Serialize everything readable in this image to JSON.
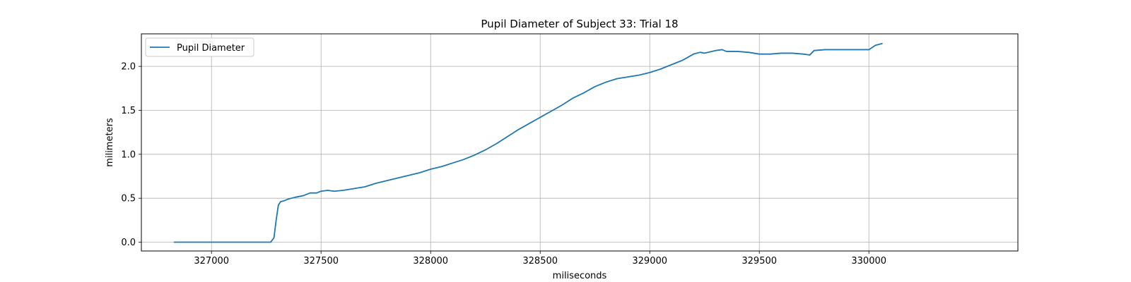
{
  "chart_data": {
    "type": "line",
    "title": "Pupil Diameter of Subject 33: Trial 18",
    "xlabel": "miliseconds",
    "ylabel": "milimeters",
    "xlim": [
      326680,
      330680
    ],
    "ylim": [
      -0.1,
      2.37
    ],
    "xticks": [
      327000,
      327500,
      328000,
      328500,
      329000,
      329500,
      330000
    ],
    "yticks": [
      0.0,
      0.5,
      1.0,
      1.5,
      2.0
    ],
    "xtick_labels": [
      "327000",
      "327500",
      "328000",
      "328500",
      "329000",
      "329500",
      "330000"
    ],
    "ytick_labels": [
      "0.0",
      "0.5",
      "1.0",
      "1.5",
      "2.0"
    ],
    "grid": true,
    "legend_position": "top-left",
    "series": [
      {
        "name": "Pupil Diameter",
        "color": "#1f77b4",
        "x": [
          326830,
          326900,
          327000,
          327100,
          327200,
          327270,
          327285,
          327295,
          327305,
          327315,
          327330,
          327350,
          327380,
          327400,
          327420,
          327450,
          327480,
          327500,
          327530,
          327560,
          327600,
          327650,
          327700,
          327750,
          327800,
          327850,
          327900,
          327950,
          328000,
          328050,
          328100,
          328150,
          328200,
          328250,
          328300,
          328350,
          328400,
          328450,
          328500,
          328550,
          328600,
          328650,
          328700,
          328750,
          328800,
          328850,
          328900,
          328950,
          329000,
          329050,
          329100,
          329150,
          329200,
          329230,
          329250,
          329300,
          329330,
          329350,
          329400,
          329450,
          329500,
          329550,
          329600,
          329650,
          329700,
          329730,
          329750,
          329800,
          329850,
          329900,
          329950,
          330000,
          330030,
          330060
        ],
        "y": [
          0.0,
          0.0,
          0.0,
          0.0,
          0.0,
          0.0,
          0.05,
          0.25,
          0.42,
          0.46,
          0.47,
          0.49,
          0.51,
          0.52,
          0.53,
          0.56,
          0.56,
          0.58,
          0.59,
          0.58,
          0.59,
          0.61,
          0.63,
          0.67,
          0.7,
          0.73,
          0.76,
          0.79,
          0.83,
          0.86,
          0.9,
          0.94,
          0.99,
          1.05,
          1.12,
          1.2,
          1.28,
          1.35,
          1.42,
          1.49,
          1.56,
          1.64,
          1.7,
          1.77,
          1.82,
          1.86,
          1.88,
          1.9,
          1.93,
          1.97,
          2.02,
          2.07,
          2.14,
          2.16,
          2.15,
          2.18,
          2.19,
          2.17,
          2.17,
          2.16,
          2.14,
          2.14,
          2.15,
          2.15,
          2.14,
          2.13,
          2.18,
          2.19,
          2.19,
          2.19,
          2.19,
          2.19,
          2.24,
          2.26
        ]
      }
    ]
  }
}
